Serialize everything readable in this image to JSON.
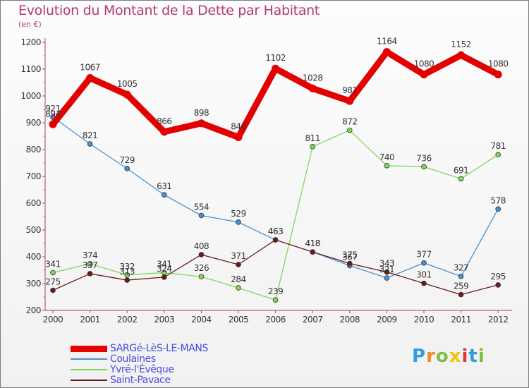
{
  "title": "Evolution du Montant de la Dette par Habitant",
  "subtitle": "(en €)",
  "brand": {
    "letters": [
      "P",
      "r",
      "o",
      "x",
      "i",
      "t",
      "i"
    ],
    "colors": [
      "#2f9de0",
      "#f28c1e",
      "#7bc142",
      "#f2c40e",
      "#e2382b",
      "#2f9de0",
      "#7bc142"
    ]
  },
  "chart_data": {
    "type": "line",
    "x": [
      "2000",
      "2001",
      "2002",
      "2003",
      "2004",
      "2005",
      "2006",
      "2007",
      "2008",
      "2009",
      "2010",
      "2011",
      "2012"
    ],
    "ylim": [
      200,
      1200
    ],
    "yticks": [
      "200",
      "300",
      "400",
      "500",
      "600",
      "700",
      "800",
      "900",
      "1000",
      "1100",
      "1200"
    ],
    "grid": false,
    "legend": "bottom-left",
    "series": [
      {
        "name": "SARGé-LèS-LE-MANS",
        "color": "#e20000",
        "values": [
          894,
          1067,
          1005,
          866,
          898,
          846,
          1102,
          1028,
          981,
          1164,
          1080,
          1152,
          1080
        ],
        "labels": [
          "894",
          "1067",
          "1005",
          "866",
          "898",
          "846",
          "1102",
          "1028",
          "981",
          "1164",
          "1080",
          "1152",
          "1080"
        ]
      },
      {
        "name": "Coulaines",
        "color": "#4a90cf",
        "values": [
          921,
          821,
          729,
          631,
          554,
          529,
          463,
          418,
          367,
          321,
          377,
          327,
          578
        ],
        "labels": [
          "921",
          "821",
          "729",
          "631",
          "554",
          "529",
          "463",
          "418",
          "367",
          "321",
          "377",
          "327",
          "578"
        ]
      },
      {
        "name": "Yvré-l'Évêque",
        "color": "#7ed957",
        "values": [
          341,
          374,
          332,
          341,
          326,
          284,
          239,
          811,
          872,
          740,
          736,
          691,
          781
        ],
        "labels": [
          "341",
          "374",
          "332",
          "341",
          "326",
          "284",
          "239",
          "811",
          "872",
          "740",
          "736",
          "691",
          "781"
        ]
      },
      {
        "name": "Saint-Pavace",
        "color": "#6b1a1a",
        "values": [
          275,
          337,
          313,
          324,
          408,
          371,
          463,
          418,
          375,
          343,
          301,
          259,
          295
        ],
        "labels": [
          "275",
          "337",
          "313",
          "324",
          "408",
          "371",
          "463",
          "418",
          "375",
          "343",
          "301",
          "259",
          "295"
        ]
      }
    ]
  }
}
